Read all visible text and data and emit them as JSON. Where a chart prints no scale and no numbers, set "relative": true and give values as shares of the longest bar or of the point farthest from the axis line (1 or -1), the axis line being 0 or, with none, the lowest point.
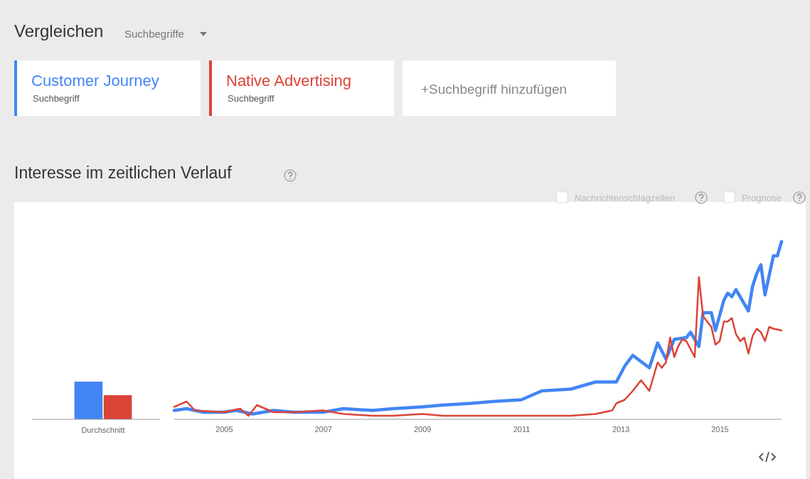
{
  "chart_data": [
    {
      "type": "bar",
      "relative": true,
      "xlabel": "Durchschnitt",
      "categories": [
        null,
        null
      ],
      "values": [
        1,
        0.64
      ],
      "colors": [
        "#4285f4",
        "#db4437"
      ]
    },
    {
      "type": "line",
      "relative": true,
      "title": "Interesse im zeitlichen Verlauf",
      "legend": "top",
      "annotations": [
        "Vergleichen",
        "Suchbegriffe",
        "Suchbegriff",
        "Suchbegriff",
        "+Suchbegriff hinzufügen",
        "Nachrichtenschlagzeilen",
        "Prognose"
      ],
      "xlim": [
        "2004-01",
        "2016-04"
      ],
      "xticks": [
        "2005",
        "2007",
        "2009",
        "2011",
        "2013",
        "2015"
      ],
      "series": [
        {
          "name": "Customer Journey",
          "color": "#4285f4",
          "x": [
            "2004-01",
            "2004-04",
            "2004-08",
            "2005-01",
            "2005-04",
            "2005-08",
            "2006-01",
            "2006-06",
            "2007-01",
            "2007-06",
            "2008-01",
            "2008-06",
            "2009-01",
            "2009-06",
            "2010-01",
            "2010-06",
            "2011-01",
            "2011-06",
            "2012-01",
            "2012-07",
            "2012-12",
            "2013-02",
            "2013-04",
            "2013-08",
            "2013-10",
            "2013-12",
            "2014-02",
            "2014-05",
            "2014-06",
            "2014-08",
            "2014-09",
            "2014-11",
            "2014-12",
            "2015-02",
            "2015-03",
            "2015-04",
            "2015-05",
            "2015-08",
            "2015-09",
            "2015-10",
            "2015-11",
            "2015-12",
            "2016-02",
            "2016-03",
            "2016-04"
          ],
          "values": [
            0.05,
            0.06,
            0.04,
            0.04,
            0.05,
            0.03,
            0.05,
            0.04,
            0.04,
            0.06,
            0.05,
            0.06,
            0.07,
            0.08,
            0.09,
            0.1,
            0.11,
            0.16,
            0.17,
            0.21,
            0.21,
            0.3,
            0.36,
            0.29,
            0.43,
            0.34,
            0.45,
            0.46,
            0.49,
            0.41,
            0.6,
            0.6,
            0.5,
            0.67,
            0.71,
            0.69,
            0.73,
            0.61,
            0.75,
            0.82,
            0.87,
            0.7,
            0.92,
            0.92,
            1.0
          ]
        },
        {
          "name": "Native Advertising",
          "color": "#db4437",
          "x": [
            "2004-01",
            "2004-04",
            "2004-06",
            "2005-01",
            "2005-05",
            "2005-07",
            "2005-09",
            "2006-01",
            "2006-06",
            "2007-01",
            "2007-06",
            "2008-01",
            "2008-06",
            "2009-01",
            "2009-06",
            "2010-01",
            "2011-01",
            "2012-01",
            "2012-07",
            "2012-11",
            "2012-12",
            "2013-02",
            "2013-04",
            "2013-06",
            "2013-08",
            "2013-10",
            "2013-11",
            "2013-12",
            "2014-01",
            "2014-02",
            "2014-03",
            "2014-04",
            "2014-05",
            "2014-07",
            "2014-08",
            "2014-09",
            "2014-11",
            "2014-12",
            "2015-01",
            "2015-02",
            "2015-03",
            "2015-04",
            "2015-05",
            "2015-06",
            "2015-07",
            "2015-08",
            "2015-09",
            "2015-10",
            "2015-11",
            "2015-12",
            "2016-01",
            "2016-02",
            "2016-04"
          ],
          "values": [
            0.07,
            0.1,
            0.05,
            0.04,
            0.06,
            0.02,
            0.08,
            0.04,
            0.04,
            0.05,
            0.03,
            0.02,
            0.02,
            0.03,
            0.02,
            0.02,
            0.02,
            0.02,
            0.03,
            0.05,
            0.09,
            0.11,
            0.16,
            0.22,
            0.16,
            0.32,
            0.29,
            0.32,
            0.46,
            0.35,
            0.41,
            0.45,
            0.44,
            0.35,
            0.8,
            0.58,
            0.52,
            0.42,
            0.44,
            0.55,
            0.55,
            0.57,
            0.48,
            0.44,
            0.46,
            0.37,
            0.47,
            0.51,
            0.49,
            0.44,
            0.52,
            0.51,
            0.5
          ]
        }
      ]
    }
  ]
}
